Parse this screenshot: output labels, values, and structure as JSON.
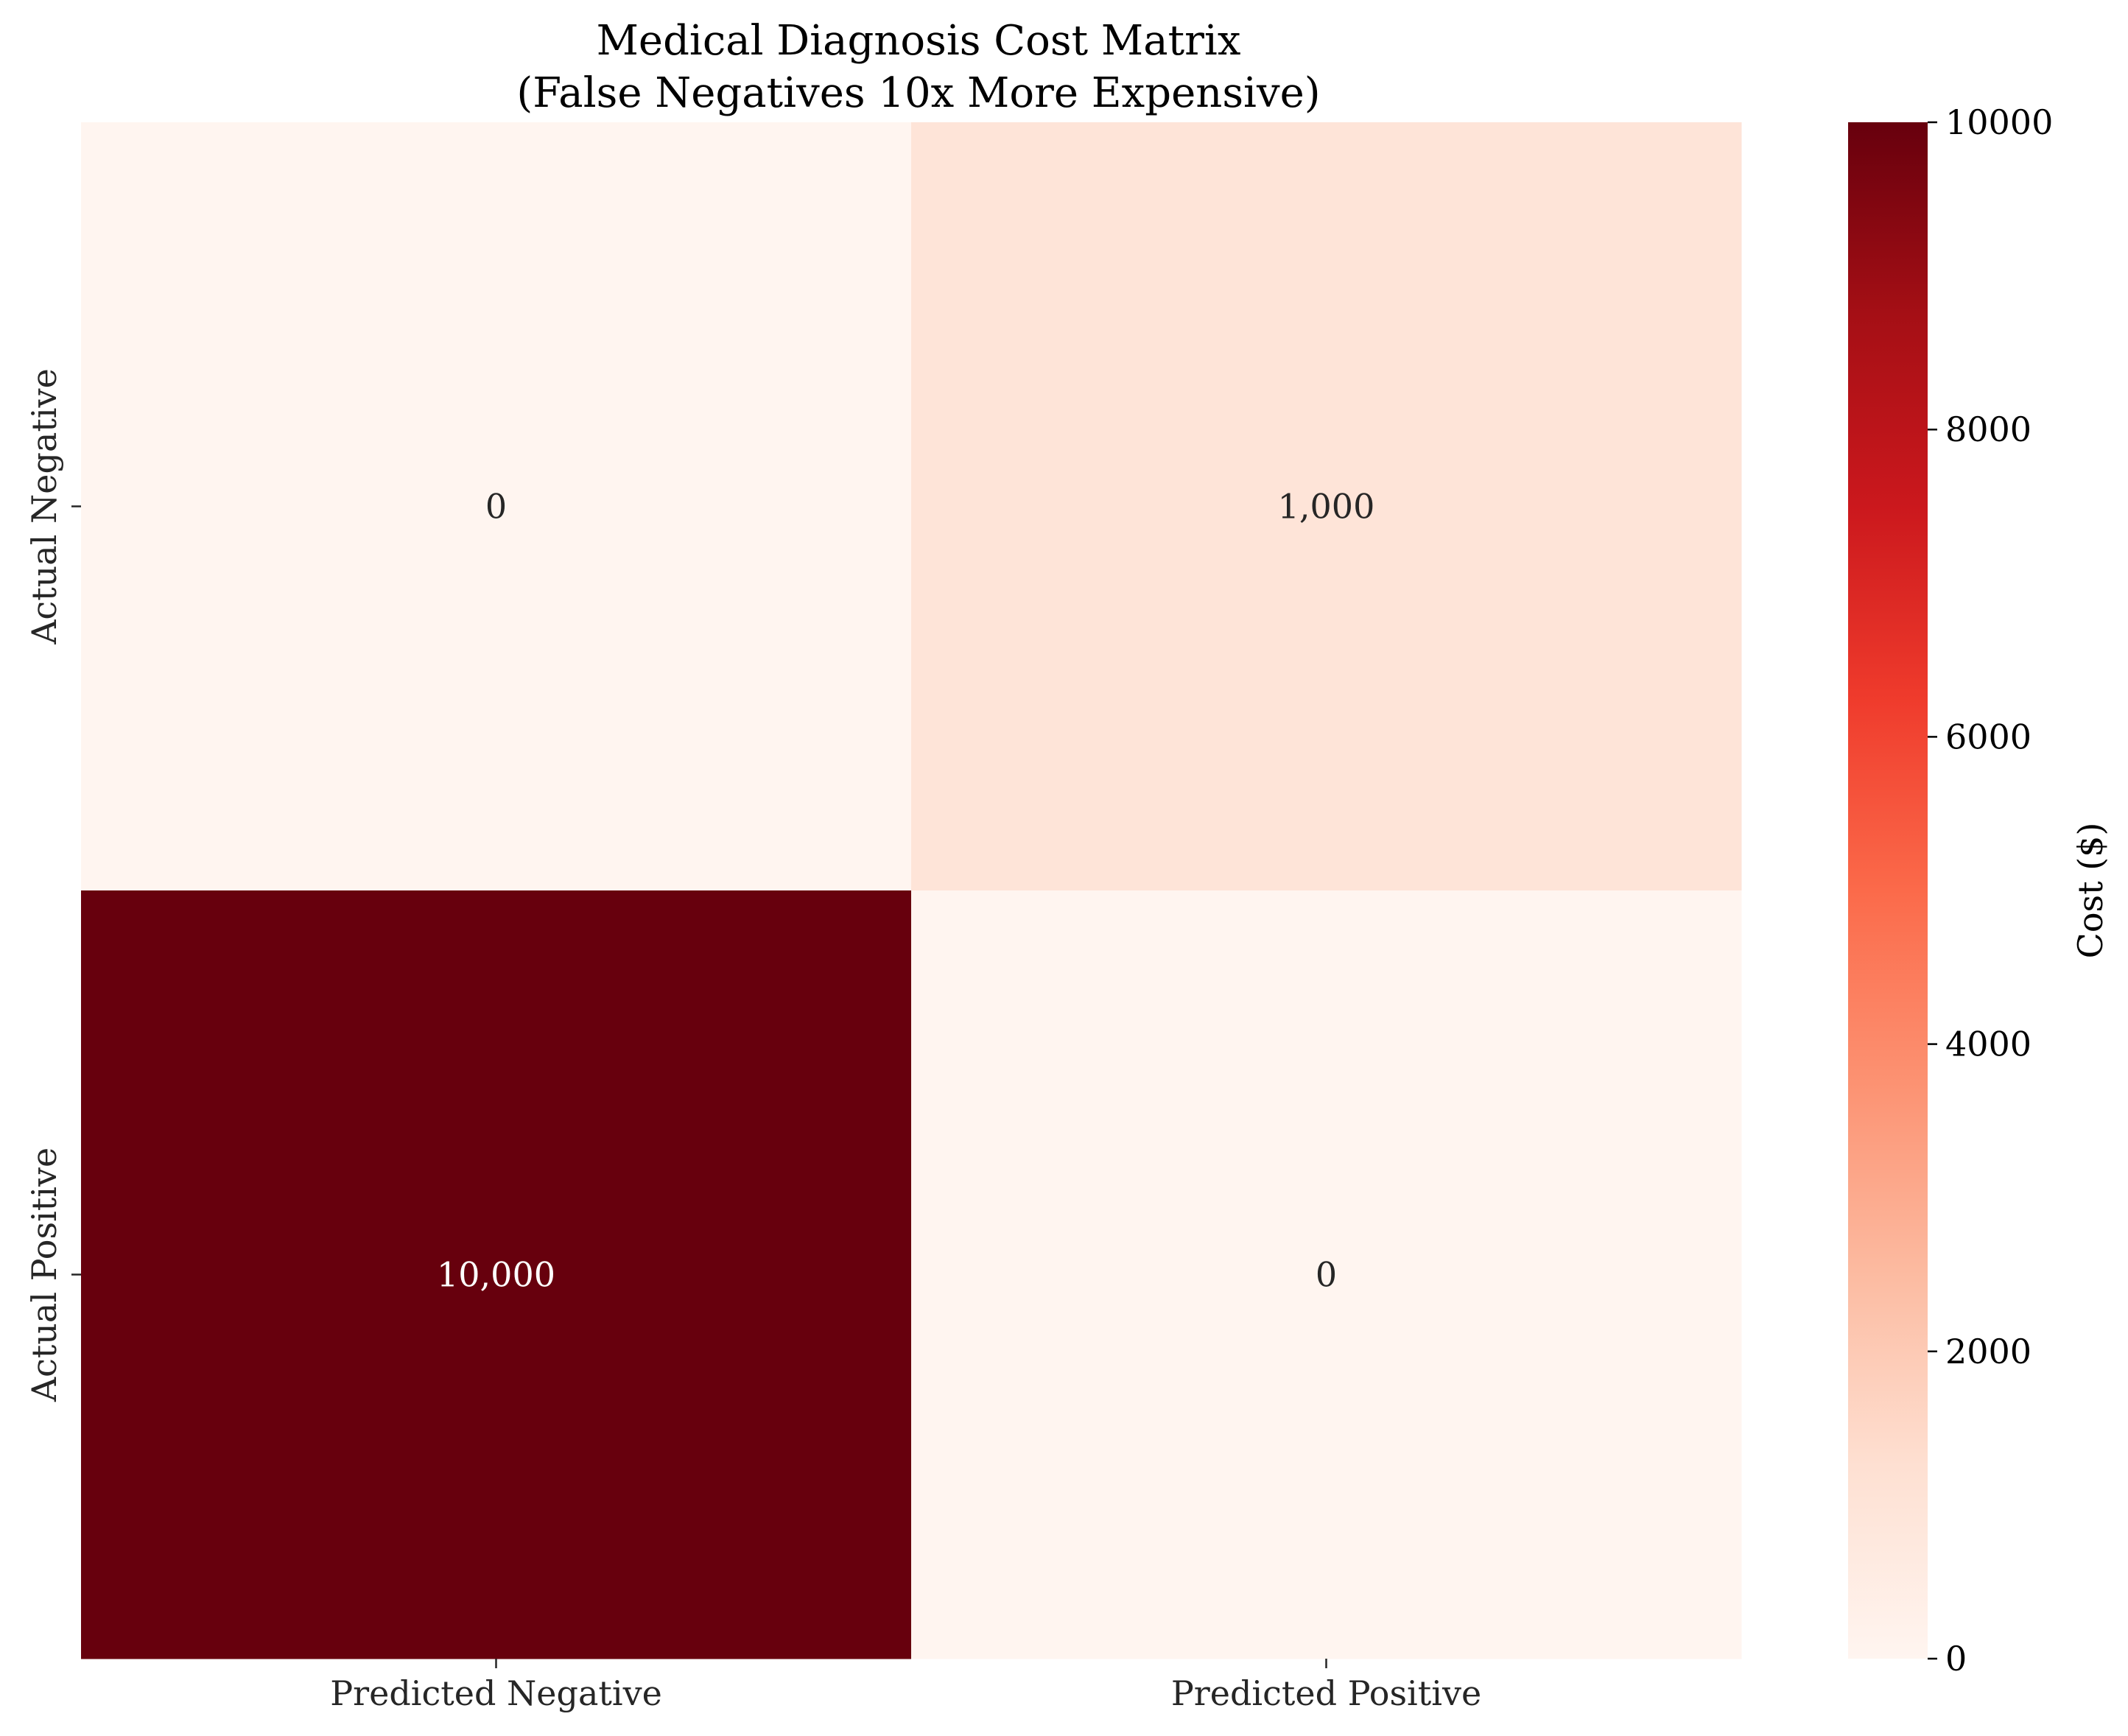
{
  "chart_data": {
    "type": "heatmap",
    "title_line1": "Medical Diagnosis Cost Matrix",
    "title_line2": "(False Negatives 10x More Expensive)",
    "rows": [
      "Actual Negative",
      "Actual Positive"
    ],
    "columns": [
      "Predicted Negative",
      "Predicted Positive"
    ],
    "values": [
      [
        0,
        1000
      ],
      [
        10000,
        0
      ]
    ],
    "cell_labels": [
      [
        "0",
        "1,000"
      ],
      [
        "10,000",
        "0"
      ]
    ],
    "colormap": "Reds",
    "vmin": 0,
    "vmax": 10000,
    "colorbar": {
      "label": "Cost ($)",
      "ticks": [
        0,
        2000,
        4000,
        6000,
        8000,
        10000
      ],
      "tick_labels": [
        "0",
        "2000",
        "4000",
        "6000",
        "8000",
        "10000"
      ]
    },
    "legend": "colorbar-right",
    "grid": false
  }
}
